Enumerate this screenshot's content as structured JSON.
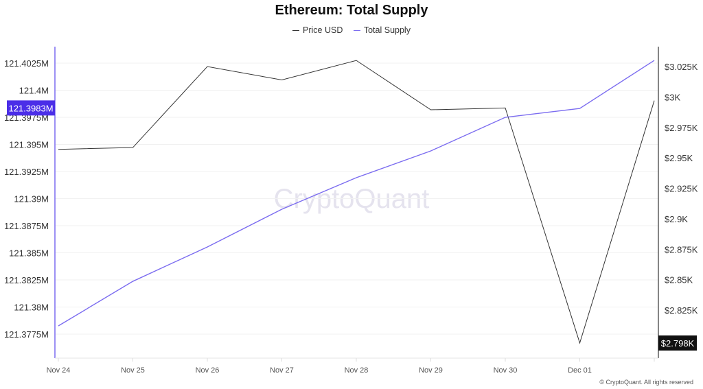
{
  "chart_data": {
    "type": "line",
    "title": "Ethereum: Total Supply",
    "categories": [
      "Nov 24",
      "Nov 25",
      "Nov 26",
      "Nov 27",
      "Nov 28",
      "Nov 29",
      "Nov 30",
      "Dec 01",
      ""
    ],
    "series": [
      {
        "name": "Price USD",
        "axis": "right",
        "color": "#333333",
        "values": [
          2957,
          2958.5,
          3025,
          3014,
          3030,
          2989.5,
          2991,
          2798,
          2997
        ]
      },
      {
        "name": "Total Supply",
        "axis": "left",
        "color": "#7b6cf0",
        "values": [
          121.37826,
          121.38237,
          121.38554,
          121.38902,
          121.39193,
          121.3944,
          121.3975,
          121.39832,
          121.40275
        ]
      }
    ],
    "left_axis": {
      "ticks": [
        121.4025,
        121.4,
        121.3975,
        121.395,
        121.3925,
        121.39,
        121.3875,
        121.385,
        121.3825,
        121.38,
        121.3775
      ],
      "tick_labels": [
        "121.4025M",
        "121.4M",
        "121.3975M",
        "121.395M",
        "121.3925M",
        "121.39M",
        "121.3875M",
        "121.385M",
        "121.3825M",
        "121.38M",
        "121.3775M"
      ],
      "highlight_label": "121.3983M",
      "highlight_value": 121.3983,
      "highlight_color": "#4b2ee8"
    },
    "right_axis": {
      "ticks": [
        3025,
        3000,
        2975,
        2950,
        2925,
        2900,
        2875,
        2850,
        2825
      ],
      "tick_labels": [
        "$3.025K",
        "$3K",
        "$2.975K",
        "$2.95K",
        "$2.925K",
        "$2.9K",
        "$2.875K",
        "$2.85K",
        "$2.825K"
      ],
      "highlight_label": "$2.798K",
      "highlight_value": 2798,
      "highlight_color": "#111111"
    },
    "grid": true,
    "legend": "top-center"
  },
  "watermark": "CryptoQuant",
  "credit": "© CryptoQuant. All rights reserved"
}
